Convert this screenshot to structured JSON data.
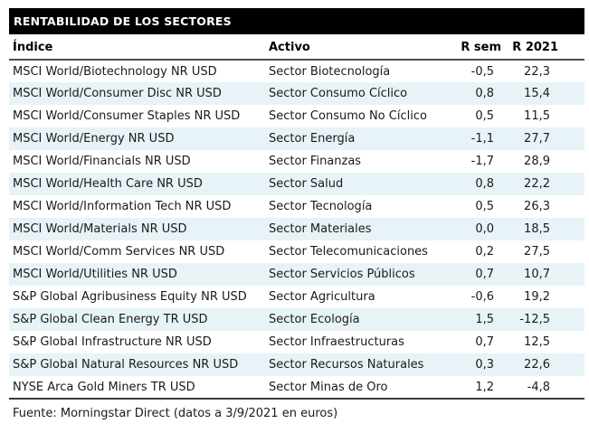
{
  "chart_data": {
    "type": "table",
    "title": "RENTABILIDAD DE LOS SECTORES",
    "columns": [
      "Índice",
      "Activo",
      "R sem",
      "R 2021"
    ],
    "rows": [
      {
        "indice": "MSCI World/Biotechnology NR USD",
        "activo": "Sector Biotecnología",
        "r_sem": "-0,5",
        "r_2021": "22,3"
      },
      {
        "indice": "MSCI World/Consumer Disc NR USD",
        "activo": "Sector Consumo Cíclico",
        "r_sem": "0,8",
        "r_2021": "15,4"
      },
      {
        "indice": "MSCI World/Consumer Staples NR USD",
        "activo": "Sector Consumo No Cíclico",
        "r_sem": "0,5",
        "r_2021": "11,5"
      },
      {
        "indice": "MSCI World/Energy NR USD",
        "activo": "Sector Energía",
        "r_sem": "-1,1",
        "r_2021": "27,7"
      },
      {
        "indice": "MSCI World/Financials NR USD",
        "activo": "Sector Finanzas",
        "r_sem": "-1,7",
        "r_2021": "28,9"
      },
      {
        "indice": "MSCI World/Health Care NR USD",
        "activo": "Sector Salud",
        "r_sem": "0,8",
        "r_2021": "22,2"
      },
      {
        "indice": "MSCI World/Information Tech NR USD",
        "activo": "Sector Tecnología",
        "r_sem": "0,5",
        "r_2021": "26,3"
      },
      {
        "indice": "MSCI World/Materials NR USD",
        "activo": "Sector Materiales",
        "r_sem": "0,0",
        "r_2021": "18,5"
      },
      {
        "indice": "MSCI World/Comm Services NR USD",
        "activo": "Sector Telecomunicaciones",
        "r_sem": "0,2",
        "r_2021": "27,5"
      },
      {
        "indice": "MSCI World/Utilities NR USD",
        "activo": "Sector Servicios Públicos",
        "r_sem": "0,7",
        "r_2021": "10,7"
      },
      {
        "indice": "S&P Global Agribusiness Equity NR USD",
        "activo": "Sector Agricultura",
        "r_sem": "-0,6",
        "r_2021": "19,2"
      },
      {
        "indice": "S&P Global Clean Energy TR USD",
        "activo": "Sector Ecología",
        "r_sem": "1,5",
        "r_2021": "-12,5"
      },
      {
        "indice": "S&P Global Infrastructure NR USD",
        "activo": "Sector Infraestructuras",
        "r_sem": "0,7",
        "r_2021": "12,5"
      },
      {
        "indice": "S&P Global Natural Resources NR USD",
        "activo": "Sector Recursos Naturales",
        "r_sem": "0,3",
        "r_2021": "22,6"
      },
      {
        "indice": "NYSE Arca Gold Miners TR USD",
        "activo": "Sector Minas de Oro",
        "r_sem": "1,2",
        "r_2021": "-4,8"
      }
    ],
    "source": "Fuente: Morningstar Direct (datos a 3/9/2021 en euros)",
    "layout": {
      "alternating_rows": true,
      "numeric_align": "right",
      "grid": "none"
    }
  },
  "colors": {
    "title_bg": "#000000",
    "title_text": "#ffffff",
    "row_alt_bg": "#e8f3f8",
    "header_rule": "#4d4d4d",
    "footer_rule": "#3c3c3c",
    "text": "#1a1a1a"
  }
}
